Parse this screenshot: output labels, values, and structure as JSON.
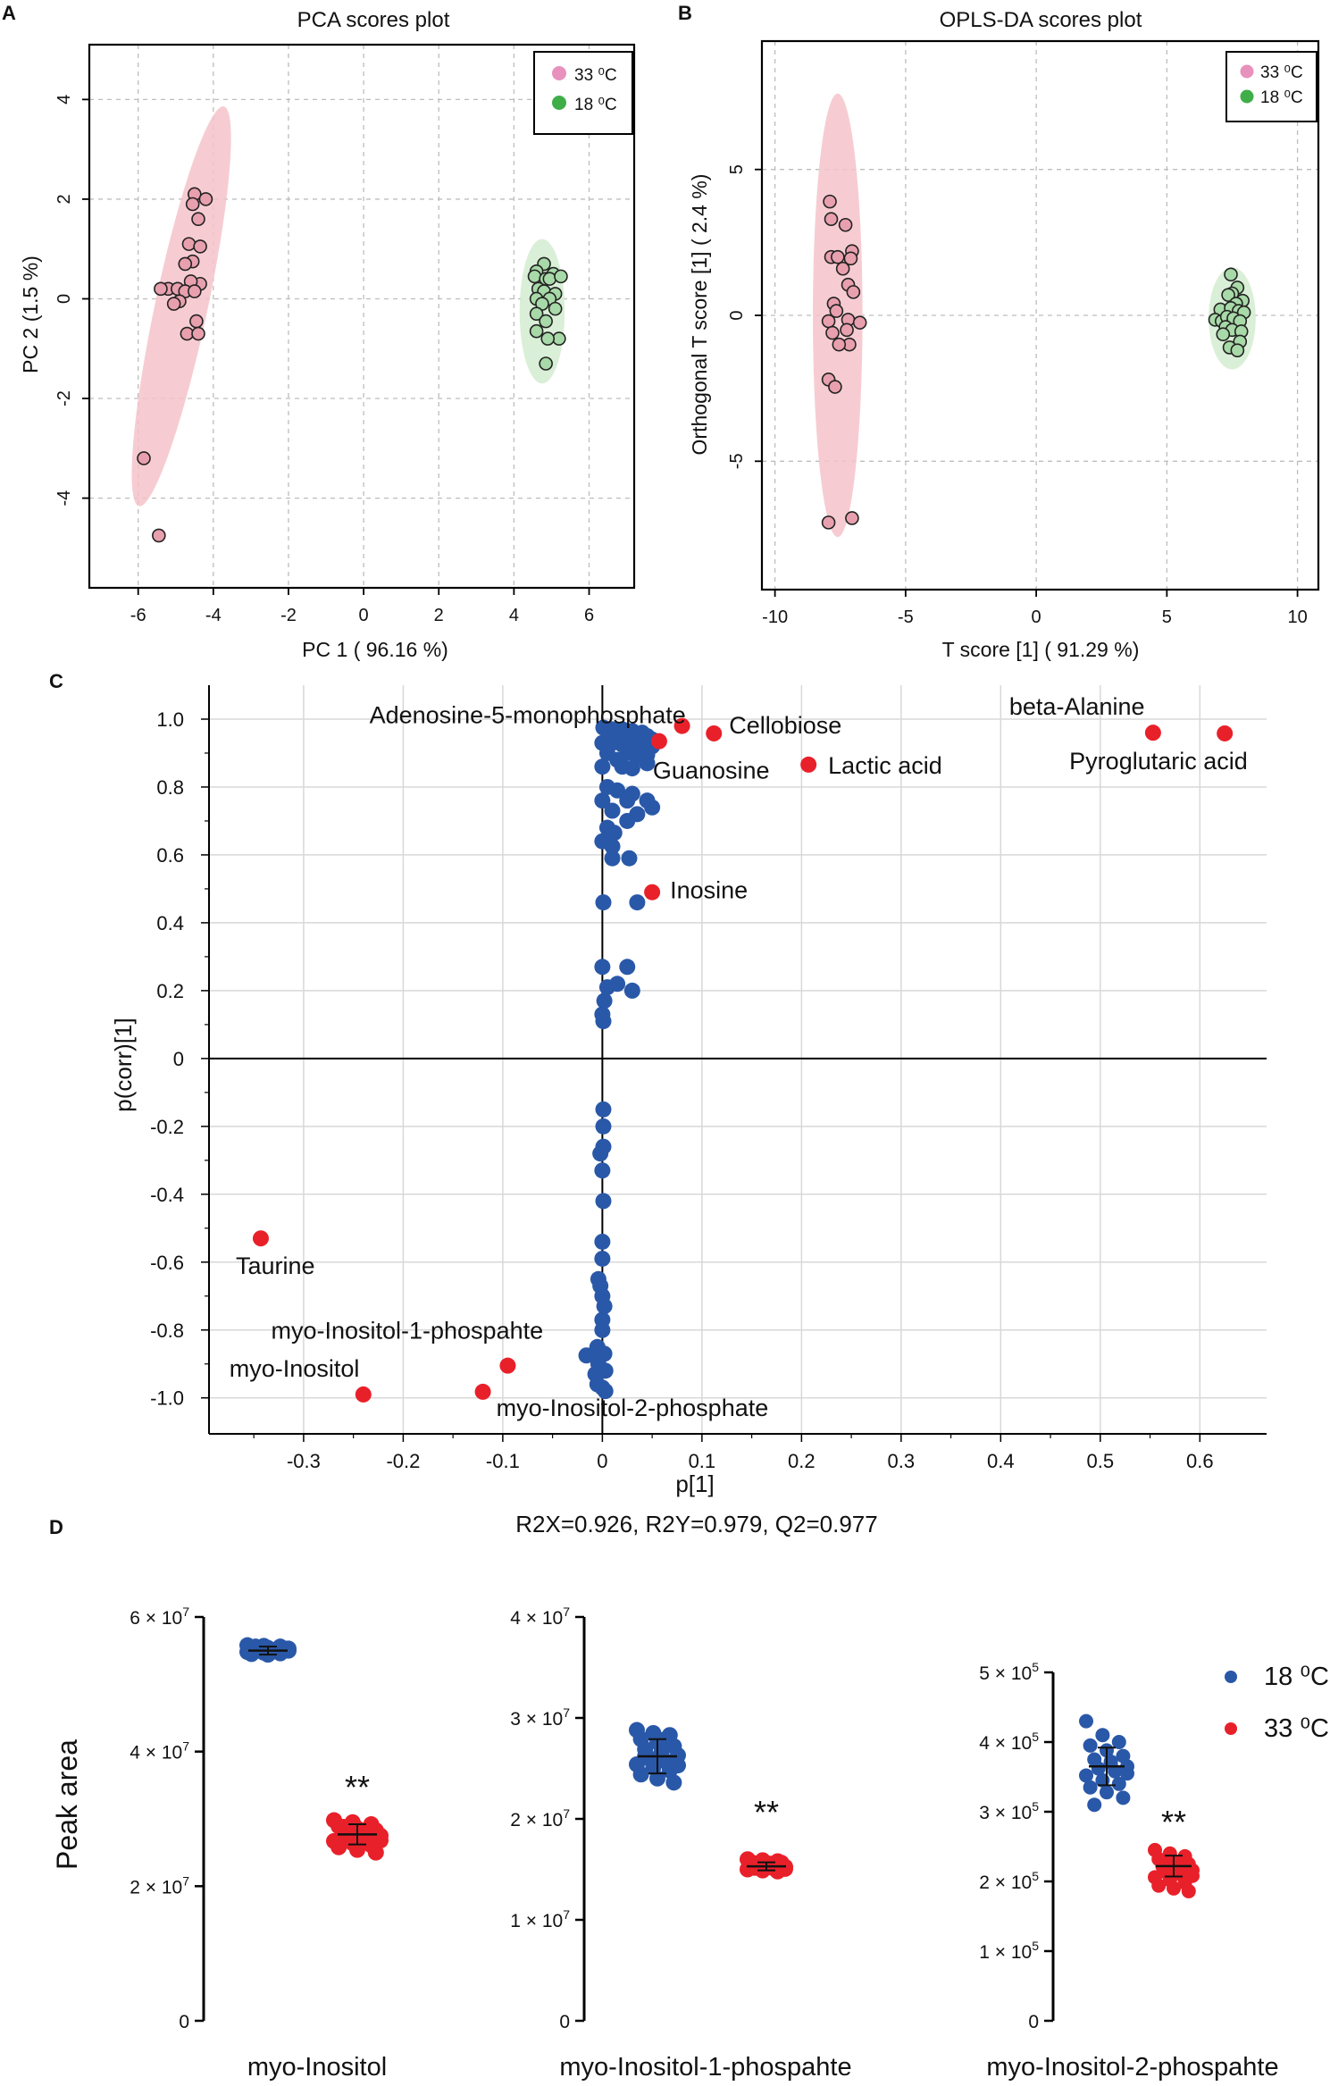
{
  "panels": {
    "a": {
      "letter": "A"
    },
    "b": {
      "letter": "B"
    },
    "c": {
      "letter": "C"
    },
    "d": {
      "letter": "D"
    }
  },
  "colors": {
    "pink_point": "#e8a0ae",
    "pink_ellipse": "#f4c3ca",
    "green_point": "#a8d9a8",
    "green_ellipse": "#d3ecd0",
    "legend_pink": "#e891bd",
    "legend_green": "#3fae49",
    "blue": "#2a58a8",
    "red": "#e8202a"
  },
  "chart_data": [
    {
      "type": "scatter",
      "id": "pca",
      "title": "PCA scores plot",
      "xlabel": "PC 1 ( 96.16 %)",
      "ylabel": "PC 2 (1.5 %)",
      "xlim": [
        -7.3,
        7.2
      ],
      "ylim": [
        -5.8,
        5.1
      ],
      "xticks": [
        -6,
        -4,
        -2,
        0,
        2,
        4,
        6
      ],
      "yticks": [
        -4,
        -2,
        0,
        2,
        4
      ],
      "xtick_labels": [
        "-6",
        "-4",
        "-2",
        "0",
        "2",
        "4",
        "6"
      ],
      "ytick_labels": [
        "-4",
        "-2",
        "0",
        "2",
        "4"
      ],
      "legend": [
        "33 ⁰C",
        "18 ⁰C"
      ],
      "ellipses": [
        {
          "group": "33",
          "cx": -4.85,
          "cy": -0.15,
          "rx": 0.7,
          "ry": 4.1,
          "angle": 12
        },
        {
          "group": "18",
          "cx": 4.75,
          "cy": -0.25,
          "rx": 0.6,
          "ry": 1.45,
          "angle": 0
        }
      ],
      "series": [
        {
          "name": "33 ⁰C",
          "points": [
            [
              -4.5,
              2.1
            ],
            [
              -4.2,
              2.0
            ],
            [
              -4.55,
              1.9
            ],
            [
              -4.4,
              1.6
            ],
            [
              -4.65,
              1.1
            ],
            [
              -4.35,
              1.05
            ],
            [
              -4.55,
              0.75
            ],
            [
              -4.75,
              0.7
            ],
            [
              -4.35,
              0.3
            ],
            [
              -4.6,
              0.35
            ],
            [
              -5.2,
              0.2
            ],
            [
              -4.95,
              0.2
            ],
            [
              -4.75,
              0.15
            ],
            [
              -4.5,
              0.15
            ],
            [
              -5.4,
              0.2
            ],
            [
              -4.9,
              -0.05
            ],
            [
              -5.05,
              -0.1
            ],
            [
              -4.45,
              -0.45
            ],
            [
              -4.7,
              -0.7
            ],
            [
              -4.4,
              -0.7
            ],
            [
              -5.85,
              -3.2
            ],
            [
              -5.45,
              -4.75
            ]
          ]
        },
        {
          "name": "18 ⁰C",
          "points": [
            [
              4.8,
              0.7
            ],
            [
              4.6,
              0.55
            ],
            [
              5.05,
              0.5
            ],
            [
              4.55,
              0.45
            ],
            [
              4.85,
              0.4
            ],
            [
              4.95,
              0.4
            ],
            [
              5.25,
              0.45
            ],
            [
              4.65,
              0.2
            ],
            [
              4.8,
              0.15
            ],
            [
              5.1,
              0.1
            ],
            [
              4.6,
              0.0
            ],
            [
              4.95,
              0.0
            ],
            [
              4.75,
              -0.1
            ],
            [
              5.1,
              -0.2
            ],
            [
              4.6,
              -0.3
            ],
            [
              4.85,
              -0.45
            ],
            [
              4.6,
              -0.65
            ],
            [
              5.2,
              -0.8
            ],
            [
              4.9,
              -0.8
            ],
            [
              4.85,
              -1.3
            ]
          ]
        }
      ]
    },
    {
      "type": "scatter",
      "id": "oplsda",
      "title": "OPLS-DA scores plot",
      "xlabel": "T score [1] ( 91.29 %)",
      "ylabel": "Orthogonal T score [1] ( 2.4 %)",
      "xlim": [
        -10.5,
        10.8
      ],
      "ylim": [
        -9.4,
        9.4
      ],
      "xticks": [
        -10,
        -5,
        0,
        5,
        10
      ],
      "yticks": [
        -5,
        0,
        5
      ],
      "xtick_labels": [
        "-10",
        "-5",
        "0",
        "5",
        "10"
      ],
      "ytick_labels": [
        "-5",
        "0",
        "5"
      ],
      "legend": [
        "33 ⁰C",
        "18 ⁰C"
      ],
      "ellipses": [
        {
          "group": "33",
          "cx": -7.6,
          "cy": 0.0,
          "rx": 0.95,
          "ry": 7.6,
          "angle": 0
        },
        {
          "group": "18",
          "cx": 7.5,
          "cy": -0.1,
          "rx": 0.9,
          "ry": 1.75,
          "angle": 0
        }
      ],
      "series": [
        {
          "name": "33 ⁰C",
          "points": [
            [
              -7.9,
              3.9
            ],
            [
              -7.3,
              3.1
            ],
            [
              -7.85,
              3.3
            ],
            [
              -7.05,
              2.2
            ],
            [
              -7.85,
              2.0
            ],
            [
              -7.6,
              2.0
            ],
            [
              -7.1,
              1.95
            ],
            [
              -7.4,
              1.6
            ],
            [
              -7.2,
              1.05
            ],
            [
              -7.0,
              0.8
            ],
            [
              -7.75,
              0.4
            ],
            [
              -7.65,
              0.15
            ],
            [
              -7.95,
              -0.2
            ],
            [
              -7.2,
              -0.15
            ],
            [
              -6.75,
              -0.25
            ],
            [
              -7.25,
              -0.5
            ],
            [
              -7.8,
              -0.6
            ],
            [
              -7.15,
              -1.0
            ],
            [
              -7.55,
              -1.0
            ],
            [
              -7.95,
              -2.2
            ],
            [
              -7.7,
              -2.45
            ],
            [
              -7.05,
              -6.95
            ],
            [
              -7.95,
              -7.1
            ]
          ]
        },
        {
          "name": "18 ⁰C",
          "points": [
            [
              7.45,
              1.4
            ],
            [
              7.7,
              0.95
            ],
            [
              7.5,
              0.75
            ],
            [
              7.35,
              0.7
            ],
            [
              7.9,
              0.5
            ],
            [
              7.65,
              0.4
            ],
            [
              7.05,
              0.2
            ],
            [
              7.45,
              0.25
            ],
            [
              7.75,
              0.15
            ],
            [
              7.95,
              0.1
            ],
            [
              6.85,
              -0.15
            ],
            [
              7.1,
              -0.2
            ],
            [
              7.3,
              -0.05
            ],
            [
              7.55,
              -0.1
            ],
            [
              7.8,
              -0.2
            ],
            [
              7.25,
              -0.4
            ],
            [
              7.5,
              -0.5
            ],
            [
              7.85,
              -0.55
            ],
            [
              7.15,
              -0.65
            ],
            [
              7.8,
              -0.9
            ],
            [
              7.4,
              -1.1
            ],
            [
              7.7,
              -1.2
            ]
          ]
        }
      ]
    },
    {
      "type": "scatter",
      "id": "splot",
      "xlabel": "p[1]",
      "ylabel": "p(corr)[1]",
      "subtitle": "R2X=0.926, R2Y=0.979, Q2=0.977",
      "xlim": [
        -0.395,
        0.667
      ],
      "ylim": [
        -1.106,
        1.1
      ],
      "xticks": [
        -0.3,
        -0.2,
        -0.1,
        0,
        0.1,
        0.2,
        0.3,
        0.4,
        0.5,
        0.6
      ],
      "yticks": [
        -1.0,
        -0.8,
        -0.6,
        -0.4,
        -0.2,
        0,
        0.2,
        0.4,
        0.6,
        0.8,
        1.0
      ],
      "xtick_labels": [
        "-0.3",
        "-0.2",
        "-0.1",
        "0",
        "0.1",
        "0.2",
        "0.3",
        "0.4",
        "0.5",
        "0.6"
      ],
      "ytick_labels": [
        "-1.0",
        "-0.8",
        "-0.6",
        "-0.4",
        "-0.2",
        "0",
        "0.2",
        "0.4",
        "0.6",
        "0.8",
        "1.0"
      ],
      "blue_points": [
        [
          0.001,
          0.975
        ],
        [
          0.005,
          0.97
        ],
        [
          0.01,
          0.97
        ],
        [
          0.015,
          0.96
        ],
        [
          0.02,
          0.97
        ],
        [
          0.025,
          0.955
        ],
        [
          0.03,
          0.965
        ],
        [
          0.035,
          0.95
        ],
        [
          0.04,
          0.96
        ],
        [
          0.045,
          0.95
        ],
        [
          0.05,
          0.94
        ],
        [
          0.0,
          0.93
        ],
        [
          0.01,
          0.93
        ],
        [
          0.02,
          0.925
        ],
        [
          0.03,
          0.93
        ],
        [
          0.04,
          0.925
        ],
        [
          0.05,
          0.92
        ],
        [
          0.005,
          0.9
        ],
        [
          0.015,
          0.88
        ],
        [
          0.025,
          0.9
        ],
        [
          0.035,
          0.89
        ],
        [
          0.045,
          0.895
        ],
        [
          0.0,
          0.86
        ],
        [
          0.02,
          0.86
        ],
        [
          0.03,
          0.855
        ],
        [
          0.045,
          0.87
        ],
        [
          0.005,
          0.8
        ],
        [
          0.015,
          0.79
        ],
        [
          0.03,
          0.78
        ],
        [
          0.0,
          0.76
        ],
        [
          0.025,
          0.76
        ],
        [
          0.045,
          0.76
        ],
        [
          0.05,
          0.74
        ],
        [
          0.01,
          0.73
        ],
        [
          0.035,
          0.72
        ],
        [
          0.005,
          0.68
        ],
        [
          0.012,
          0.665
        ],
        [
          0.025,
          0.7
        ],
        [
          0.0,
          0.64
        ],
        [
          0.01,
          0.625
        ],
        [
          0.01,
          0.59
        ],
        [
          0.027,
          0.59
        ],
        [
          0.001,
          0.46
        ],
        [
          0.035,
          0.46
        ],
        [
          0.0,
          0.27
        ],
        [
          0.025,
          0.27
        ],
        [
          0.005,
          0.21
        ],
        [
          0.015,
          0.22
        ],
        [
          0.03,
          0.2
        ],
        [
          0.002,
          0.17
        ],
        [
          0.0,
          0.13
        ],
        [
          0.001,
          0.11
        ],
        [
          0.001,
          -0.15
        ],
        [
          0.001,
          -0.2
        ],
        [
          0.001,
          -0.26
        ],
        [
          -0.002,
          -0.28
        ],
        [
          0.0,
          -0.33
        ],
        [
          0.001,
          -0.42
        ],
        [
          0.0,
          -0.54
        ],
        [
          0.0,
          -0.59
        ],
        [
          -0.004,
          -0.65
        ],
        [
          -0.002,
          -0.67
        ],
        [
          0.0,
          -0.7
        ],
        [
          0.002,
          -0.73
        ],
        [
          0.0,
          -0.77
        ],
        [
          0.0,
          -0.8
        ],
        [
          -0.005,
          -0.85
        ],
        [
          0.002,
          -0.87
        ],
        [
          -0.008,
          -0.87
        ],
        [
          -0.016,
          -0.875
        ],
        [
          -0.004,
          -0.9
        ],
        [
          0.003,
          -0.92
        ],
        [
          -0.007,
          -0.93
        ],
        [
          -0.005,
          -0.96
        ],
        [
          0.0,
          -0.97
        ],
        [
          0.003,
          -0.98
        ]
      ],
      "red_points": [
        {
          "label": "Adenosine-5-monophosphate",
          "x": 0.08,
          "y": 0.98
        },
        {
          "label": "Cellobiose",
          "x": 0.112,
          "y": 0.958
        },
        {
          "label": "Guanosine",
          "x": 0.057,
          "y": 0.935
        },
        {
          "label": "Lactic acid",
          "x": 0.207,
          "y": 0.866
        },
        {
          "label": "beta-Alanine",
          "x": 0.553,
          "y": 0.96
        },
        {
          "label": "Pyroglutaric acid",
          "x": 0.625,
          "y": 0.958
        },
        {
          "label": "Inosine",
          "x": 0.05,
          "y": 0.49
        },
        {
          "label": "Taurine",
          "x": -0.343,
          "y": -0.53
        },
        {
          "label": "myo-Inositol-1-phospahte",
          "x": -0.095,
          "y": -0.905
        },
        {
          "label": "myo-Inositol",
          "x": -0.24,
          "y": -0.99
        },
        {
          "label": "myo-Inositol-2-phosphate",
          "x": -0.12,
          "y": -0.982
        }
      ]
    },
    {
      "type": "scatter",
      "id": "dot-myo-inositol",
      "category": "myo-Inositol",
      "ylabel": "Peak area",
      "ymax": 60000000,
      "yticks": [
        0,
        20000000,
        40000000,
        60000000
      ],
      "ytick_labels": [
        "0",
        "2 × 10",
        "4 × 10",
        "6 × 10"
      ],
      "ytick_exponents": [
        "",
        "7",
        "7",
        "7"
      ],
      "annotation": "**",
      "series": [
        {
          "name": "18 ⁰C",
          "mean": 55000000,
          "sd": 600000,
          "values": [
            55800000,
            55700000,
            55600000,
            55500000,
            55400000,
            55300000,
            55200000,
            55100000,
            55000000,
            55000000,
            54900000,
            54800000,
            54700000,
            54600000,
            54500000,
            54400000,
            55200000,
            55600000,
            54900000,
            55300000
          ]
        },
        {
          "name": "33 ⁰C",
          "mean": 27700000,
          "sd": 1500000,
          "values": [
            29800000,
            29500000,
            29200000,
            28900000,
            28600000,
            28300000,
            28000000,
            27700000,
            27500000,
            27300000,
            27000000,
            26700000,
            26400000,
            26100000,
            25800000,
            25400000,
            25000000,
            28800000,
            27900000,
            26800000
          ]
        }
      ]
    },
    {
      "type": "scatter",
      "id": "dot-myo-inositol-1-phospahte",
      "category": "myo-Inositol-1-phospahte",
      "ymax": 40000000,
      "yticks": [
        0,
        10000000,
        20000000,
        30000000,
        40000000
      ],
      "ytick_labels": [
        "0",
        "1 × 10",
        "2 × 10",
        "3 × 10",
        "4 × 10"
      ],
      "ytick_exponents": [
        "",
        "7",
        "7",
        "7",
        "7"
      ],
      "annotation": "**",
      "series": [
        {
          "name": "18 ⁰C",
          "mean": 26200000,
          "sd": 1700000,
          "values": [
            28800000,
            28500000,
            28300000,
            27900000,
            27600000,
            27200000,
            26900000,
            26600000,
            26300000,
            26000000,
            25700000,
            25400000,
            25100000,
            24800000,
            24400000,
            24000000,
            23600000,
            26200000,
            27800000,
            25300000
          ]
        },
        {
          "name": "33 ⁰C",
          "mean": 15300000,
          "sd": 400000,
          "values": [
            16000000,
            15900000,
            15800000,
            15700000,
            15600000,
            15500000,
            15400000,
            15300000,
            15250000,
            15200000,
            15100000,
            15000000,
            14900000,
            14800000,
            15350000,
            15450000,
            15650000,
            15150000,
            15550000,
            15050000
          ]
        }
      ]
    },
    {
      "type": "scatter",
      "id": "dot-myo-inositol-2-phospahte",
      "category": "myo-Inositol-2-phospahte",
      "ymax": 500000,
      "yticks": [
        0,
        100000,
        200000,
        300000,
        400000,
        500000
      ],
      "ytick_labels": [
        "0",
        "1 × 10",
        "2 × 10",
        "3 × 10",
        "4 × 10",
        "5 × 10"
      ],
      "ytick_exponents": [
        "",
        "5",
        "5",
        "5",
        "5",
        "5"
      ],
      "annotation": "**",
      "legend": [
        "18 ⁰C",
        "33 ⁰C"
      ],
      "series": [
        {
          "name": "18 ⁰C",
          "mean": 365000,
          "sd": 27000,
          "values": [
            430000,
            410000,
            400000,
            395000,
            388000,
            380000,
            375000,
            370000,
            365000,
            362000,
            358000,
            352000,
            345000,
            340000,
            335000,
            328000,
            320000,
            310000,
            372000,
            355000
          ]
        },
        {
          "name": "33 ⁰C",
          "mean": 222000,
          "sd": 15000,
          "values": [
            245000,
            240000,
            236000,
            232000,
            228000,
            225000,
            222000,
            219000,
            216000,
            213000,
            210000,
            206000,
            202000,
            198000,
            194000,
            190000,
            186000,
            230000,
            217000,
            208000
          ]
        }
      ]
    }
  ]
}
